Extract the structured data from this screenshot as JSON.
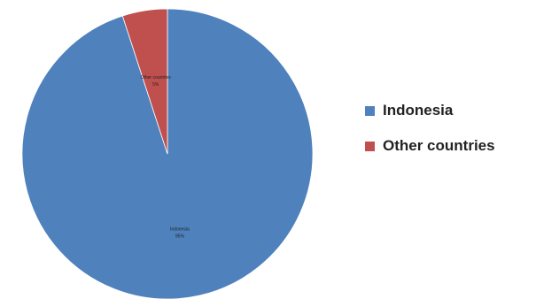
{
  "chart_data": {
    "type": "pie",
    "categories": [
      "Indonesia",
      "Other countries"
    ],
    "values": [
      95,
      5
    ],
    "value_labels": [
      "95%",
      "5%"
    ],
    "colors": [
      "#4f81bd",
      "#c0504d"
    ],
    "legend": {
      "placement": "right",
      "entries": [
        "Indonesia",
        "Other countries"
      ]
    }
  }
}
